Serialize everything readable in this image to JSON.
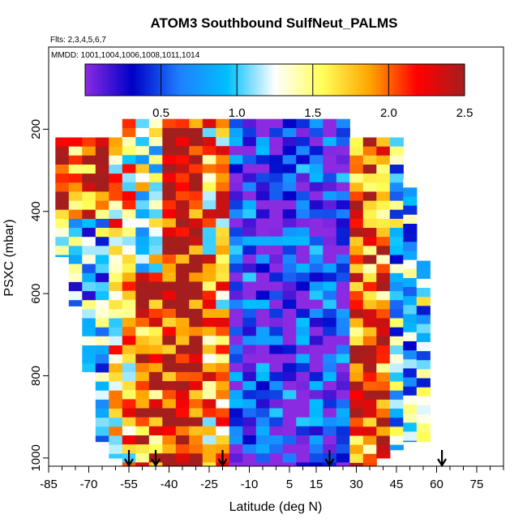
{
  "chart_data": {
    "type": "heatmap",
    "title": "ATOM3 Southbound SulfNeut_PALMS",
    "flights_label": "Flts: 2,3,4,5,6,7",
    "mmdd_label": "MMDD: 1001,1004,1006,1008,1011,1014",
    "xlabel": "Latitude (deg N)",
    "ylabel": "PSXC (mbar)",
    "xlim": [
      -85,
      85
    ],
    "ylim": [
      1020,
      0
    ],
    "x_ticks": [
      -85,
      -70,
      -55,
      -40,
      -25,
      -10,
      5,
      15,
      30,
      45,
      60,
      75
    ],
    "y_ticks": [
      200,
      400,
      600,
      800,
      1000
    ],
    "colorbar": {
      "range": [
        0,
        2.5
      ],
      "ticks": [
        0.5,
        1.0,
        1.5,
        2.0,
        2.5
      ],
      "tick_labels": [
        "0.5",
        "1.0",
        "1.5",
        "2.0",
        "2.5"
      ],
      "colors": [
        "#8a2be2",
        "#0000c8",
        "#1f7fff",
        "#00bfff",
        "#ffffff",
        "#ffff5a",
        "#ffa500",
        "#ff0000",
        "#a51e1e"
      ]
    },
    "arrow_latitudes": [
      -55,
      -45,
      -20,
      20,
      62
    ],
    "coverage": [
      {
        "lat": -80,
        "top": 220,
        "bottom": 510
      },
      {
        "lat": -75,
        "top": 220,
        "bottom": 630
      },
      {
        "lat": -70,
        "top": 220,
        "bottom": 790
      },
      {
        "lat": -65,
        "top": 220,
        "bottom": 960
      },
      {
        "lat": -60,
        "top": 220,
        "bottom": 1000
      },
      {
        "lat": -55,
        "top": 175,
        "bottom": 1020
      },
      {
        "lat": -50,
        "top": 175,
        "bottom": 1020
      },
      {
        "lat": -45,
        "top": 175,
        "bottom": 1020
      },
      {
        "lat": -40,
        "top": 175,
        "bottom": 1020
      },
      {
        "lat": -35,
        "top": 175,
        "bottom": 1020
      },
      {
        "lat": -30,
        "top": 175,
        "bottom": 1020
      },
      {
        "lat": -25,
        "top": 175,
        "bottom": 1020
      },
      {
        "lat": -20,
        "top": 175,
        "bottom": 1020
      },
      {
        "lat": -15,
        "top": 175,
        "bottom": 1020
      },
      {
        "lat": -10,
        "top": 175,
        "bottom": 1020
      },
      {
        "lat": -5,
        "top": 175,
        "bottom": 1020
      },
      {
        "lat": 0,
        "top": 175,
        "bottom": 1020
      },
      {
        "lat": 5,
        "top": 175,
        "bottom": 1020
      },
      {
        "lat": 10,
        "top": 175,
        "bottom": 1020
      },
      {
        "lat": 15,
        "top": 175,
        "bottom": 1020
      },
      {
        "lat": 20,
        "top": 175,
        "bottom": 1020
      },
      {
        "lat": 25,
        "top": 175,
        "bottom": 1020
      },
      {
        "lat": 30,
        "top": 220,
        "bottom": 1020
      },
      {
        "lat": 35,
        "top": 220,
        "bottom": 1020
      },
      {
        "lat": 40,
        "top": 220,
        "bottom": 1000
      },
      {
        "lat": 45,
        "top": 220,
        "bottom": 980
      },
      {
        "lat": 50,
        "top": 320,
        "bottom": 960
      },
      {
        "lat": 55,
        "top": 520,
        "bottom": 960
      }
    ],
    "regions": [
      {
        "lat": [
          -82,
          -62
        ],
        "p": [
          220,
          420
        ],
        "value": 2.1
      },
      {
        "lat": [
          -82,
          -62
        ],
        "p": [
          420,
          1000
        ],
        "value": 0.9
      },
      {
        "lat": [
          -62,
          -52
        ],
        "p": [
          175,
          1020
        ],
        "value": 1.6
      },
      {
        "lat": [
          -52,
          -40
        ],
        "p": [
          175,
          560
        ],
        "value": 1.2
      },
      {
        "lat": [
          -52,
          -40
        ],
        "p": [
          560,
          1020
        ],
        "value": 2.1
      },
      {
        "lat": [
          -40,
          -28
        ],
        "p": [
          175,
          1020
        ],
        "value": 2.4
      },
      {
        "lat": [
          -28,
          -15
        ],
        "p": [
          175,
          1020
        ],
        "value": 1.7
      },
      {
        "lat": [
          -15,
          28
        ],
        "p": [
          175,
          1020
        ],
        "value": 0.3
      },
      {
        "lat": [
          28,
          42
        ],
        "p": [
          220,
          1020
        ],
        "value": 2.0
      },
      {
        "lat": [
          42,
          56
        ],
        "p": [
          220,
          1020
        ],
        "value": 1.0
      }
    ],
    "grid": false,
    "legend": "top"
  }
}
